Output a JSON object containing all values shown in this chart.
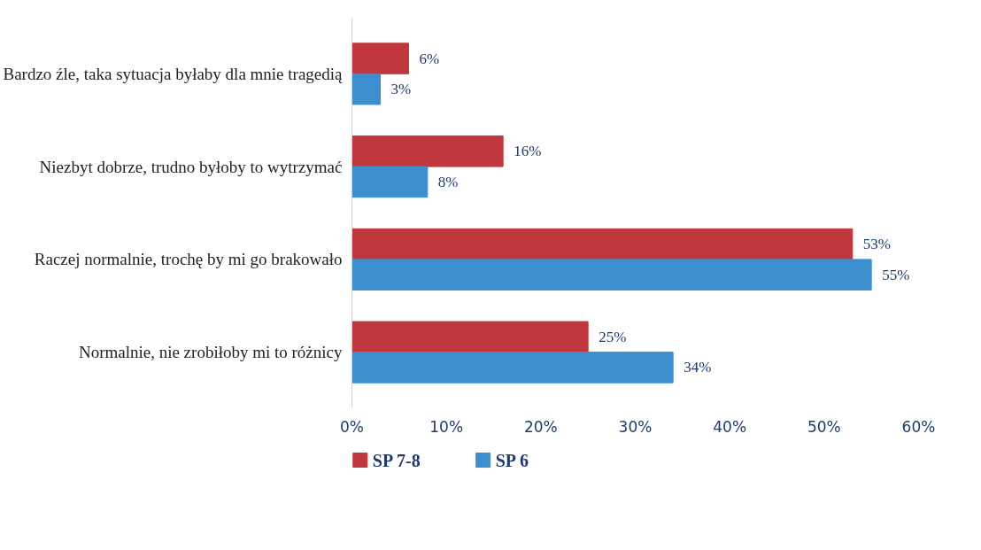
{
  "chart_data": {
    "type": "bar",
    "orientation": "horizontal",
    "categories": [
      "Bardzo źle, taka sytuacja byłaby dla mnie tragedią",
      "Niezbyt dobrze, trudno byłoby to wytrzymać",
      "Raczej normalnie, trochę by mi go brakowało",
      "Normalnie, nie zrobiłoby mi to różnicy"
    ],
    "series": [
      {
        "name": "SP 7-8",
        "color": "#c0383e",
        "values": [
          6,
          16,
          53,
          25
        ],
        "value_labels": [
          "6%",
          "16%",
          "53%",
          "25%"
        ]
      },
      {
        "name": "SP 6",
        "color": "#3c8fcf",
        "values": [
          3,
          8,
          55,
          34
        ],
        "value_labels": [
          "3%",
          "8%",
          "55%",
          "34%"
        ]
      }
    ],
    "xlim": [
      0,
      60
    ],
    "xticks": [
      {
        "value": 0,
        "label": "0%"
      },
      {
        "value": 10,
        "label": "10%"
      },
      {
        "value": 20,
        "label": "20%"
      },
      {
        "value": 30,
        "label": "30%"
      },
      {
        "value": 40,
        "label": "40%"
      },
      {
        "value": 50,
        "label": "50%"
      },
      {
        "value": 60,
        "label": "60%"
      }
    ],
    "grid": false,
    "legend": "bottom left"
  }
}
